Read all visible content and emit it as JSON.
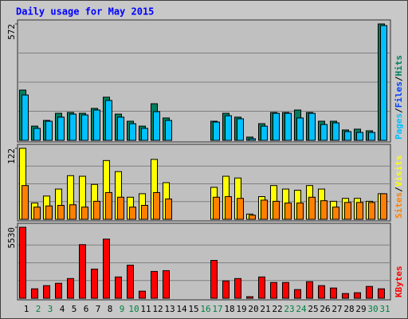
{
  "chart_data": {
    "type": "bar",
    "title": "Daily usage for May 2015",
    "categories": [
      "1",
      "2",
      "3",
      "4",
      "5",
      "6",
      "7",
      "8",
      "9",
      "10",
      "11",
      "12",
      "13",
      "14",
      "15",
      "16",
      "17",
      "18",
      "19",
      "20",
      "21",
      "22",
      "23",
      "24",
      "25",
      "26",
      "27",
      "28",
      "29",
      "30",
      "31"
    ],
    "label_color": "#000000",
    "weekend_color": "#008040",
    "weekend_days": [
      2,
      3,
      9,
      10,
      16,
      17,
      23,
      24,
      30,
      31
    ],
    "grid_divisions": 4,
    "separator": "/",
    "panels": [
      {
        "ylim": [
          0,
          572
        ],
        "yticks": [
          572
        ],
        "legend_extra": {
          "text": "Files",
          "color": "#0040ff"
        },
        "series": [
          {
            "name": "Hits",
            "color": "#008060",
            "values": [
              247,
              70,
              98,
              133,
              137,
              133,
              157,
              212,
              129,
              94,
              70,
              180,
              110,
              0,
              0,
              0,
              94,
              133,
              114,
              16,
              82,
              137,
              137,
              149,
              137,
              94,
              94,
              51,
              55,
              47,
              572
            ]
          },
          {
            "name": "Pages",
            "color": "#00c0ff",
            "values": [
              223,
              59,
              94,
              114,
              129,
              125,
              149,
              196,
              114,
              82,
              59,
              141,
              98,
              0,
              0,
              0,
              90,
              121,
              106,
              8,
              70,
              133,
              133,
              110,
              133,
              78,
              86,
              43,
              39,
              39,
              564
            ]
          }
        ]
      },
      {
        "ylim": [
          0,
          122
        ],
        "yticks": [
          122
        ],
        "series": [
          {
            "name": "Visits",
            "color": "#ffff00",
            "values": [
              122,
              28,
              40,
              52,
              75,
              74,
              60,
              101,
              82,
              38,
              44,
              103,
              63,
              0,
              0,
              0,
              55,
              74,
              71,
              9,
              39,
              58,
              52,
              50,
              58,
              52,
              31,
              36,
              36,
              31,
              44
            ]
          },
          {
            "name": "Sites",
            "color": "#ff8000",
            "values": [
              58,
              21,
              23,
              24,
              25,
              21,
              31,
              46,
              38,
              21,
              24,
              46,
              35,
              0,
              0,
              0,
              38,
              39,
              36,
              7,
              33,
              31,
              28,
              28,
              38,
              32,
              21,
              29,
              29,
              29,
              44
            ]
          }
        ]
      },
      {
        "ylim": [
          0,
          5530
        ],
        "yticks": [
          5530
        ],
        "series": [
          {
            "name": "KBytes",
            "color": "#ff0000",
            "values": [
              5530,
              737,
              983,
              1167,
              1536,
              4178,
              2273,
              4608,
              1659,
              2581,
              553,
              2089,
              2151,
              0,
              0,
              0,
              2949,
              1352,
              1536,
              123,
              1659,
              1229,
              1229,
              676,
              1290,
              983,
              799,
              369,
              430,
              922,
              737
            ]
          }
        ]
      }
    ]
  }
}
